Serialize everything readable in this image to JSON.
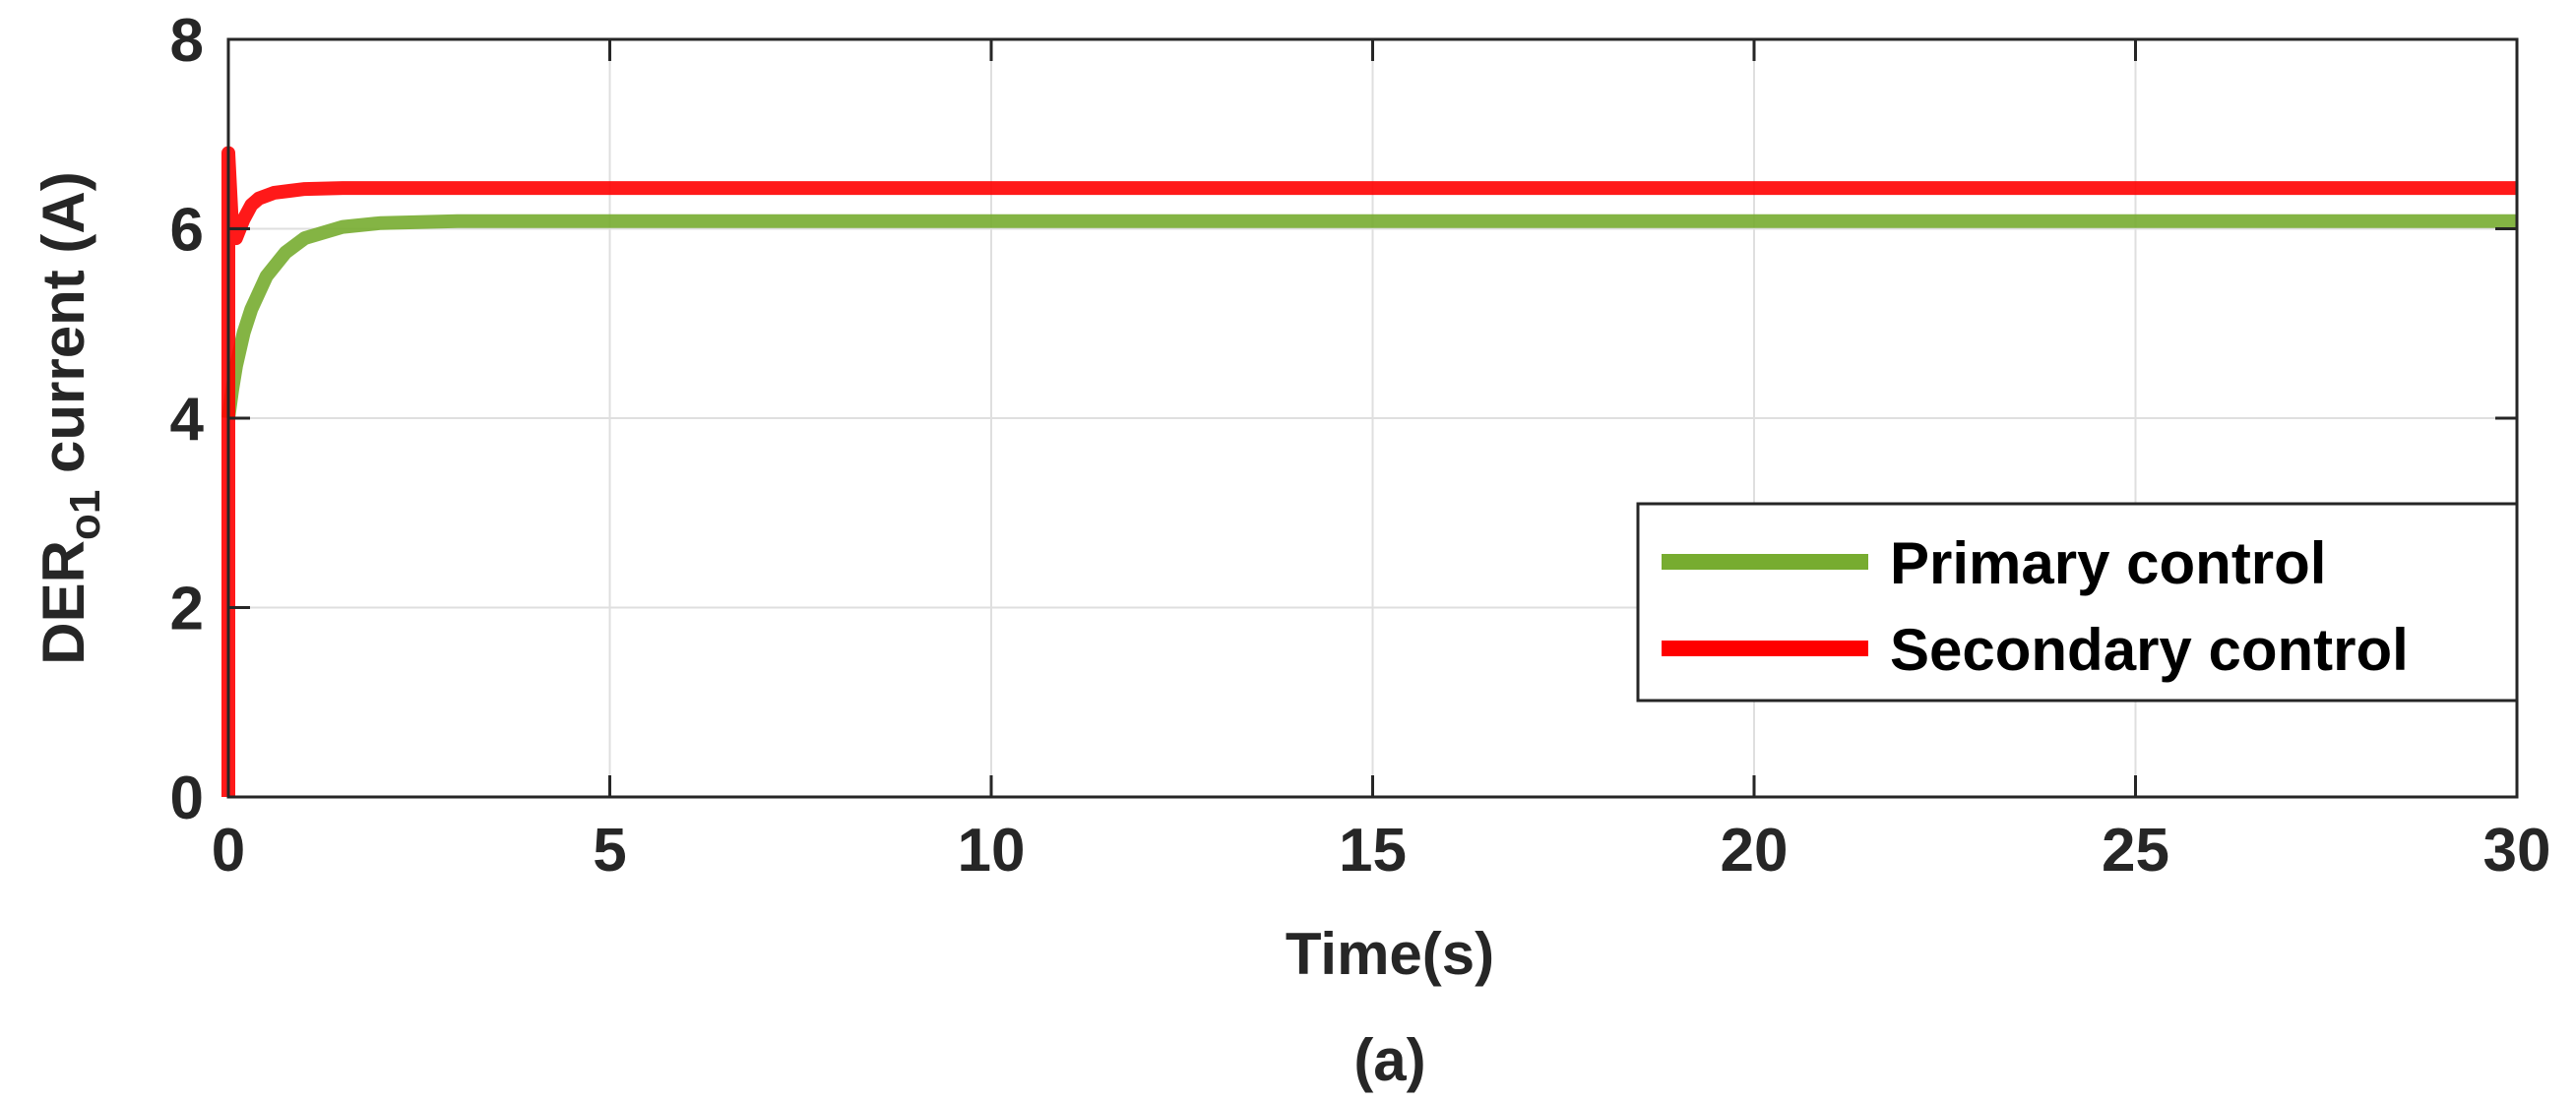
{
  "chart_data": {
    "type": "line",
    "title": "",
    "xlabel": "Time(s)",
    "ylabel_main": "DER",
    "ylabel_subscript": "o1",
    "ylabel_suffix": " current (A)",
    "caption": "(a)",
    "xlim": [
      0,
      30
    ],
    "ylim": [
      0,
      8
    ],
    "xticks": [
      0,
      5,
      10,
      15,
      20,
      25,
      30
    ],
    "yticks": [
      0,
      2,
      4,
      6,
      8
    ],
    "grid": true,
    "legend_position": "right",
    "series": [
      {
        "name": "Primary control",
        "color": "#77ac30",
        "x": [
          0,
          0.05,
          0.1,
          0.2,
          0.3,
          0.5,
          0.75,
          1.0,
          1.5,
          2.0,
          3.0,
          5.0,
          10.0,
          15.0,
          20.0,
          25.0,
          30.0
        ],
        "y": [
          4.0,
          4.3,
          4.55,
          4.9,
          5.15,
          5.5,
          5.75,
          5.9,
          6.02,
          6.06,
          6.08,
          6.08,
          6.08,
          6.08,
          6.08,
          6.08,
          6.08
        ]
      },
      {
        "name": "Secondary control",
        "color": "#ff0000",
        "x": [
          0,
          0,
          0.05,
          0.1,
          0.15,
          0.2,
          0.3,
          0.4,
          0.6,
          0.8,
          1.0,
          1.5,
          2.0,
          5.0,
          10.0,
          15.0,
          20.0,
          25.0,
          30.0
        ],
        "y": [
          0,
          6.8,
          6.0,
          5.9,
          6.0,
          6.1,
          6.25,
          6.32,
          6.38,
          6.4,
          6.42,
          6.43,
          6.43,
          6.43,
          6.43,
          6.43,
          6.43,
          6.43,
          6.43
        ]
      }
    ]
  }
}
